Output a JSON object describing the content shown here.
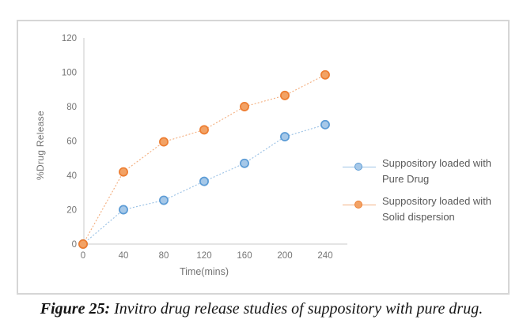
{
  "caption": {
    "prefix": "Figure 25:",
    "text": "Invitro drug release studies of suppository with pure drug."
  },
  "chart_data": {
    "type": "line",
    "title": "",
    "xlabel": "Time(mins)",
    "ylabel": "%Drug Release",
    "x": [
      0,
      40,
      80,
      120,
      160,
      200,
      240
    ],
    "xticks": [
      0,
      40,
      80,
      120,
      160,
      200,
      240
    ],
    "yticks": [
      0,
      20,
      40,
      60,
      80,
      100,
      120
    ],
    "xlim": [
      0,
      240
    ],
    "ylim": [
      0,
      120
    ],
    "grid": false,
    "legend_position": "right",
    "marker": "circle",
    "line_style": "dotted",
    "axis_color": "#C8C8C8",
    "tick_color": "#757575",
    "series": [
      {
        "name": "Suppository loaded with Pure Drug",
        "values": [
          0,
          20,
          25.5,
          36.5,
          47,
          62.5,
          69.5
        ],
        "line_color": "#9DC3E6",
        "marker_fill": "#A6C8E8",
        "marker_border": "#5B9BD5"
      },
      {
        "name": "Suppository loaded with Solid dispersion",
        "values": [
          0,
          42,
          59.5,
          66.5,
          80,
          86.5,
          98.5
        ],
        "line_color": "#F4B183",
        "marker_fill": "#F2A265",
        "marker_border": "#ED7D31"
      }
    ]
  }
}
